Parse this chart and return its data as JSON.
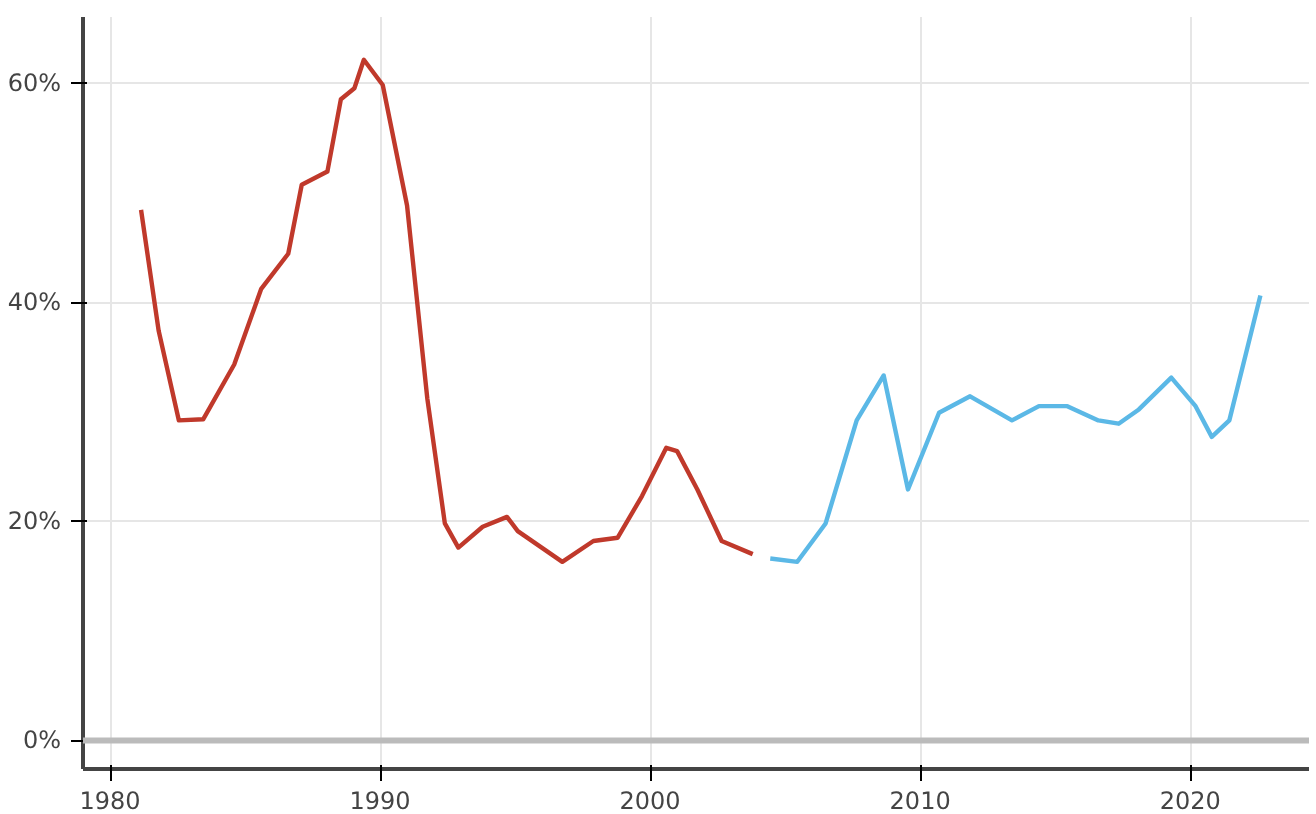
{
  "chart_data": {
    "type": "line",
    "xlim": [
      1979.0,
      2024.4
    ],
    "ylim": [
      -2.6,
      66
    ],
    "xticks": [
      1980,
      1990,
      2000,
      2010,
      2020
    ],
    "yticks": [
      {
        "value": 0,
        "label": "0%"
      },
      {
        "value": 20,
        "label": "20%"
      },
      {
        "value": 40,
        "label": "40%"
      },
      {
        "value": 60,
        "label": "60%"
      }
    ],
    "grid": true,
    "marker": "none",
    "line_style": "solid",
    "ref_lines": [
      {
        "axis": "y",
        "value": 0,
        "label": null,
        "color": "#bbbbbb"
      }
    ],
    "series": [
      {
        "color": "#c0392b",
        "x": [
          1981.15,
          1981.8,
          1982.55,
          1983.45,
          1984.6,
          1985.6,
          1986.6,
          1987.1,
          1988.05,
          1988.55,
          1989.05,
          1989.4,
          1990.1,
          1991.0,
          1991.75,
          1992.4,
          1992.9,
          1993.8,
          1994.7,
          1995.1,
          1996.75,
          1997.9,
          1998.8,
          1999.7,
          2000.6,
          2001.0,
          2001.75,
          2002.65,
          2003.8
        ],
        "values": [
          48.4,
          37.4,
          29.2,
          29.3,
          34.3,
          41.2,
          44.4,
          50.7,
          51.9,
          58.5,
          59.5,
          62.1,
          59.8,
          48.8,
          31.2,
          19.8,
          17.6,
          19.5,
          20.4,
          19.1,
          16.3,
          18.2,
          18.5,
          22.3,
          26.7,
          26.4,
          22.9,
          18.2,
          17.0
        ]
      },
      {
        "color": "#5bb8e6",
        "x": [
          2004.45,
          2005.45,
          2006.5,
          2007.65,
          2008.65,
          2009.55,
          2010.7,
          2011.85,
          2013.4,
          2014.4,
          2015.45,
          2016.6,
          2017.35,
          2018.1,
          2019.3,
          2020.2,
          2020.8,
          2021.45,
          2022.6
        ],
        "values": [
          16.6,
          16.3,
          19.8,
          29.2,
          33.3,
          22.9,
          29.9,
          31.4,
          29.2,
          30.5,
          30.5,
          29.2,
          28.9,
          30.2,
          33.1,
          30.5,
          27.7,
          29.2,
          40.6
        ]
      }
    ]
  }
}
